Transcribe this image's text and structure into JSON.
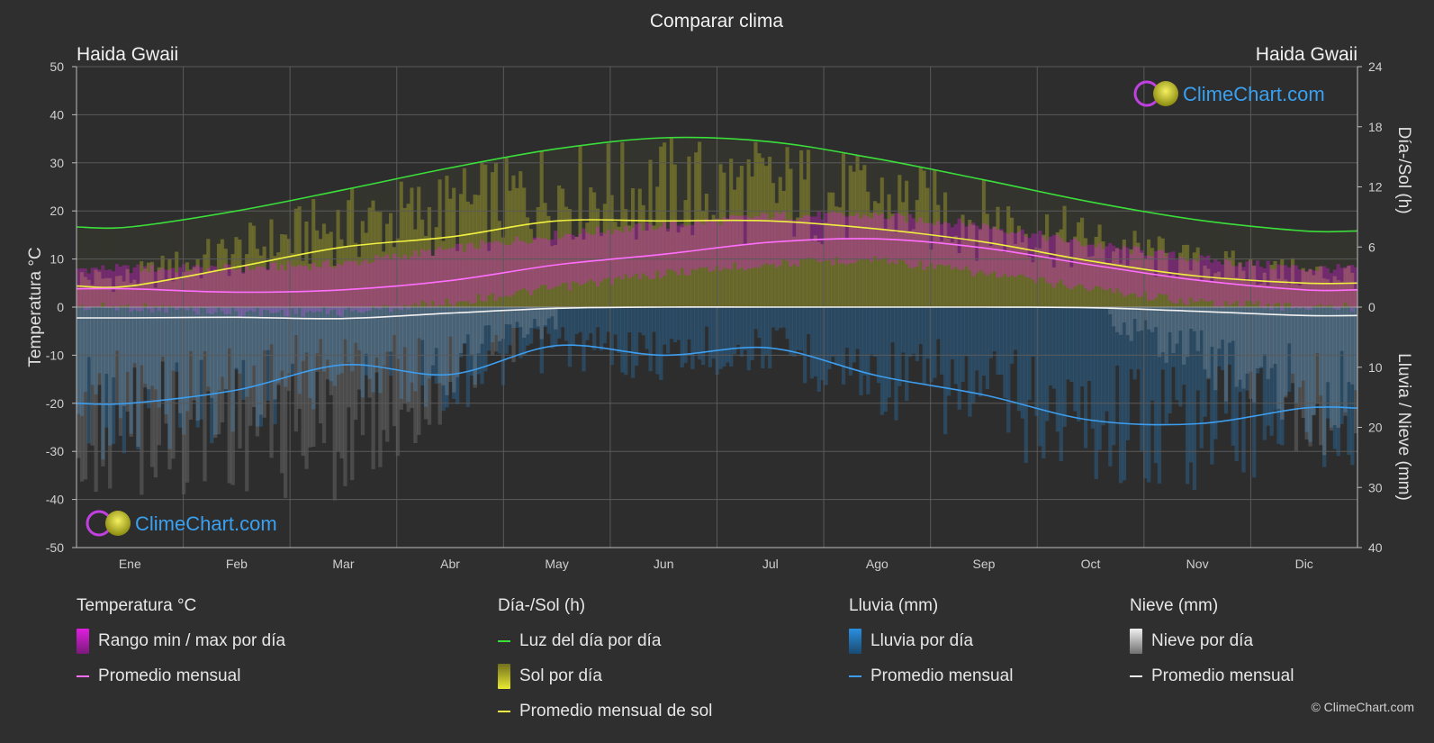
{
  "title": "Comparar clima",
  "location_left": "Haida Gwaii",
  "location_right": "Haida Gwaii",
  "watermark": "ClimeChart.com",
  "copyright": "© ClimeChart.com",
  "colors": {
    "background": "#2f2f2f",
    "plot": "#2d2d2d",
    "temp_range": "#e01ee0",
    "temp_avg": "#ff6eff",
    "daylight": "#3adf3a",
    "sun": "#c8c82a",
    "sun_avg": "#f0f040",
    "rain": "#2a8fe0",
    "rain_avg": "#3d9ef0",
    "snow": "#d8d8d8",
    "snow_avg": "#f2f2f2",
    "watermark": "#3aa0f0"
  },
  "chart_data": {
    "type": "line",
    "title": "Comparar clima",
    "categories": [
      "Ene",
      "Feb",
      "Mar",
      "Abr",
      "May",
      "Jun",
      "Jul",
      "Ago",
      "Sep",
      "Oct",
      "Nov",
      "Dic"
    ],
    "y_left": {
      "label": "Temperatura °C",
      "min": -50,
      "max": 50,
      "ticks": [
        50,
        40,
        30,
        20,
        10,
        0,
        -10,
        -20,
        -30,
        -40,
        -50
      ]
    },
    "y_right_top": {
      "label": "Día-/Sol (h)",
      "min": 0,
      "max": 24,
      "ticks": [
        24,
        18,
        12,
        6,
        0
      ]
    },
    "y_right_bottom": {
      "label": "Lluvia / Nieve (mm)",
      "min": 0,
      "max": 40,
      "ticks": [
        0,
        10,
        20,
        30,
        40
      ]
    },
    "grid": true,
    "series": [
      {
        "name": "Luz del día por día",
        "axis": "daylight_h",
        "values": [
          8.0,
          9.6,
          11.7,
          13.9,
          15.8,
          16.9,
          16.5,
          14.8,
          12.7,
          10.5,
          8.7,
          7.6
        ]
      },
      {
        "name": "Promedio mensual de sol",
        "axis": "sun_h",
        "values": [
          2.1,
          4.0,
          6.0,
          7.0,
          8.6,
          8.6,
          8.6,
          7.8,
          6.5,
          4.6,
          3.1,
          2.4
        ]
      },
      {
        "name": "Promedio mensual",
        "group": "Temperatura °C",
        "axis": "temp_c",
        "values": [
          3.8,
          3.1,
          3.6,
          5.5,
          8.8,
          11.0,
          13.5,
          14.2,
          12.3,
          8.8,
          5.6,
          3.6
        ]
      },
      {
        "name": "Promedio mensual",
        "group": "Lluvia (mm)",
        "axis": "precip_mm",
        "values": [
          16.0,
          13.8,
          9.6,
          11.2,
          6.4,
          8.0,
          6.8,
          11.4,
          14.6,
          18.8,
          19.4,
          16.8
        ]
      },
      {
        "name": "Promedio mensual",
        "group": "Nieve (mm)",
        "axis": "precip_mm",
        "values": [
          1.8,
          1.7,
          1.9,
          1.0,
          0.2,
          0.0,
          0.0,
          0.0,
          0.0,
          0.1,
          0.7,
          1.4
        ]
      }
    ],
    "temp_range_daily": {
      "min": [
        1,
        0,
        0,
        2,
        5,
        8,
        10,
        11,
        8,
        5,
        2,
        1
      ],
      "max": [
        7,
        7,
        8,
        11,
        14,
        16,
        18,
        18,
        16,
        12,
        9,
        7
      ]
    }
  },
  "legend": {
    "temperature": {
      "title": "Temperatura °C",
      "items": [
        "Rango min / max por día",
        "Promedio mensual"
      ]
    },
    "daylight": {
      "title": "Día-/Sol (h)",
      "items": [
        "Luz del día por día",
        "Sol por día",
        "Promedio mensual de sol"
      ]
    },
    "rain": {
      "title": "Lluvia (mm)",
      "items": [
        "Lluvia por día",
        "Promedio mensual"
      ]
    },
    "snow": {
      "title": "Nieve (mm)",
      "items": [
        "Nieve por día",
        "Promedio mensual"
      ]
    }
  }
}
